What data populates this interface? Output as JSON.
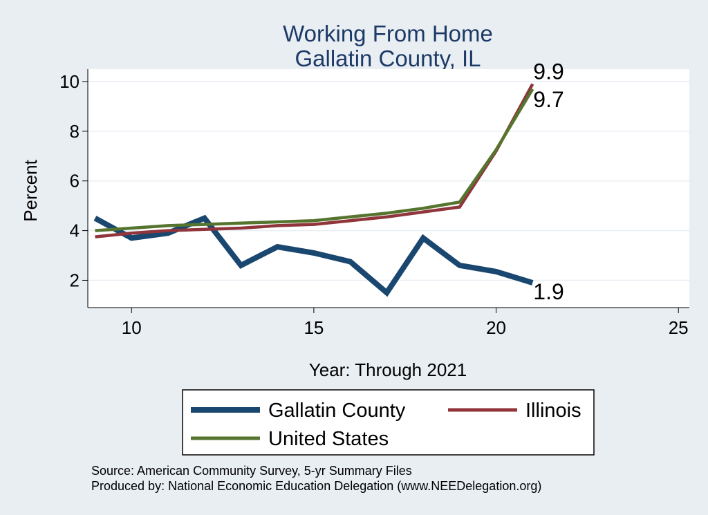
{
  "chart_data": {
    "type": "line",
    "title": [
      "Working From Home",
      "Gallatin County, IL"
    ],
    "xlabel": "Year: Through 2021",
    "ylabel": "Percent",
    "xlim": [
      8.8,
      25.3
    ],
    "ylim": [
      0.9,
      10.5
    ],
    "x_ticks": [
      10,
      15,
      20,
      25
    ],
    "y_ticks": [
      2,
      4,
      6,
      8,
      10
    ],
    "grid": "horizontal",
    "legend_position": "bottom",
    "series": [
      {
        "name": "Gallatin County",
        "color": "#1a476f",
        "x": [
          9,
          10,
          11,
          12,
          13,
          14,
          15,
          16,
          17,
          18,
          19,
          20,
          21
        ],
        "y": [
          4.5,
          3.7,
          3.9,
          4.5,
          2.6,
          3.35,
          3.1,
          2.75,
          1.5,
          3.7,
          2.6,
          2.35,
          1.9
        ],
        "end_label": "1.9"
      },
      {
        "name": "Illinois",
        "color": "#90353b",
        "x": [
          9,
          10,
          11,
          12,
          13,
          14,
          15,
          16,
          17,
          18,
          19,
          20,
          21
        ],
        "y": [
          3.75,
          3.9,
          4.0,
          4.05,
          4.1,
          4.2,
          4.25,
          4.4,
          4.55,
          4.75,
          4.95,
          7.2,
          9.9
        ],
        "end_label": "9.9"
      },
      {
        "name": "United States",
        "color": "#55752f",
        "x": [
          9,
          10,
          11,
          12,
          13,
          14,
          15,
          16,
          17,
          18,
          19,
          20,
          21
        ],
        "y": [
          4.0,
          4.1,
          4.2,
          4.25,
          4.3,
          4.35,
          4.4,
          4.55,
          4.7,
          4.9,
          5.15,
          7.25,
          9.7
        ],
        "end_label": "9.7"
      }
    ],
    "notes": [
      "Source: American Community Survey, 5-yr Summary Files",
      "Produced by: National Economic Education Delegation (www.NEEDelegation.org)"
    ]
  }
}
